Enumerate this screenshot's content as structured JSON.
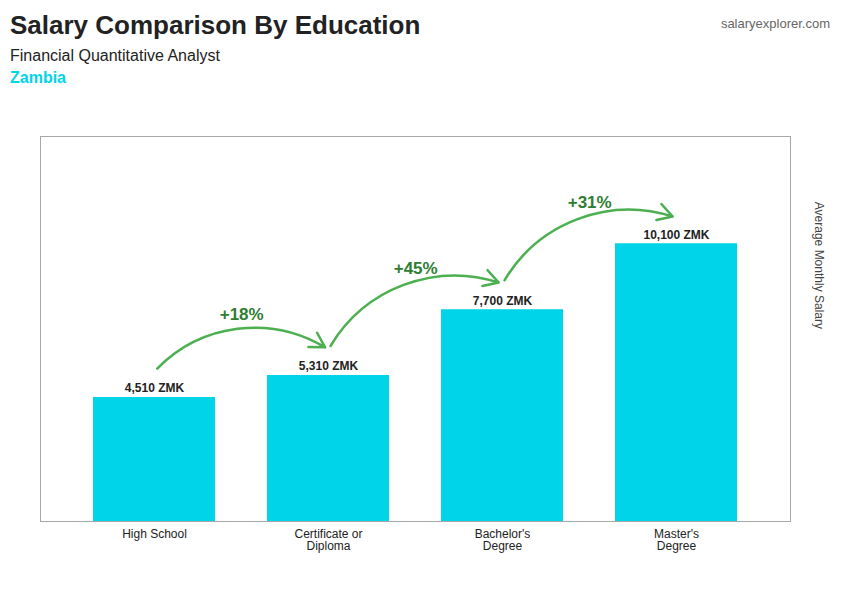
{
  "chart_data": {
    "type": "bar",
    "title": "Salary Comparison By Education",
    "subtitle": "Financial Quantitative Analyst",
    "country": "Zambia",
    "source": "salaryexplorer.com",
    "y_label": "Average Monthly Salary",
    "categories": [
      "High School",
      "Certificate or\nDiploma",
      "Bachelor's\nDegree",
      "Master's\nDegree"
    ],
    "values": [
      4510,
      5310,
      7700,
      10100
    ],
    "value_labels": [
      "4,510 ZMK",
      "5,310 ZMK",
      "7,700 ZMK",
      "10,100 ZMK"
    ],
    "data_labels": true,
    "annotations": [
      "+18%",
      "+45%",
      "+31%"
    ],
    "color": "#00d4e8",
    "ylim": [
      0,
      14000
    ],
    "tick_labels": "x",
    "grid": false
  }
}
